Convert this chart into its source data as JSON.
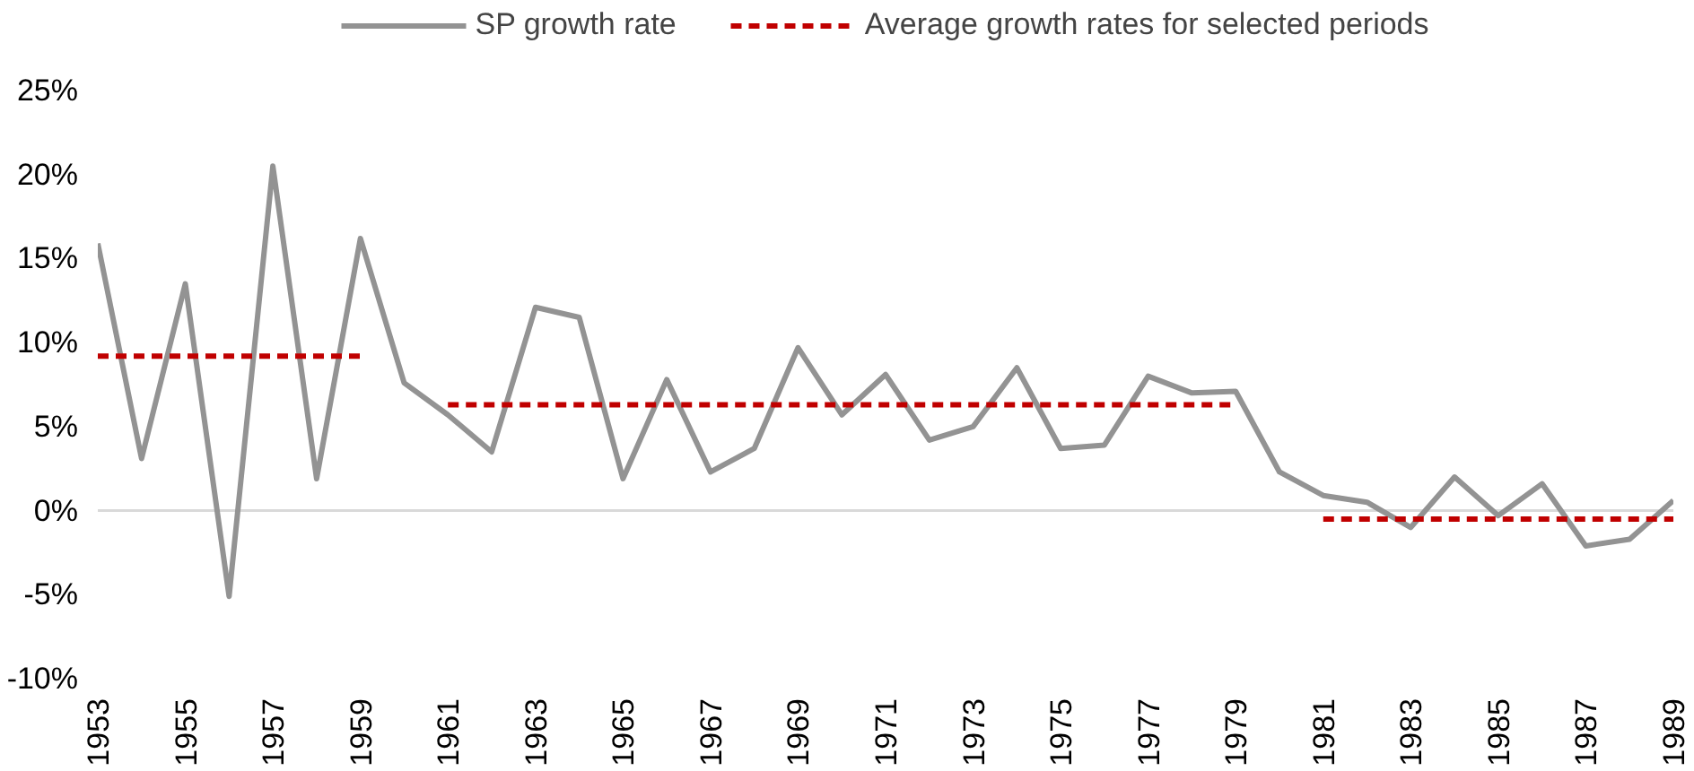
{
  "chart_data": {
    "type": "line",
    "x": [
      1953,
      1954,
      1955,
      1956,
      1957,
      1958,
      1959,
      1960,
      1961,
      1962,
      1963,
      1964,
      1965,
      1966,
      1967,
      1968,
      1969,
      1970,
      1971,
      1972,
      1973,
      1974,
      1975,
      1976,
      1977,
      1978,
      1979,
      1980,
      1981,
      1982,
      1983,
      1984,
      1985,
      1986,
      1987,
      1988,
      1989
    ],
    "series": [
      {
        "name": "SP growth rate",
        "color": "#939393",
        "line_style": "solid",
        "values": [
          15.9,
          3.1,
          13.5,
          -5.1,
          20.5,
          1.9,
          16.2,
          7.6,
          5.7,
          3.5,
          12.1,
          11.5,
          1.9,
          7.8,
          2.3,
          3.7,
          9.7,
          5.7,
          8.1,
          4.2,
          5.0,
          8.5,
          3.7,
          3.9,
          8.0,
          7.0,
          7.1,
          2.3,
          0.9,
          0.5,
          -1.0,
          2.0,
          -0.3,
          1.6,
          -2.1,
          -1.7,
          0.6
        ]
      },
      {
        "name": "Average growth rates for selected periods",
        "color": "#c00000",
        "line_style": "dashed",
        "x": [
          1953,
          1959,
          1960,
          1961,
          1979,
          1980,
          1981,
          1989
        ],
        "values": [
          9.2,
          9.2,
          null,
          6.3,
          6.3,
          null,
          -0.5,
          -0.5
        ]
      }
    ],
    "xlim": [
      1953,
      1989
    ],
    "xticks": [
      1953,
      1955,
      1957,
      1959,
      1961,
      1963,
      1965,
      1967,
      1969,
      1971,
      1973,
      1975,
      1977,
      1979,
      1981,
      1983,
      1985,
      1987,
      1989
    ],
    "ylim": [
      -10,
      25
    ],
    "yticks": [
      {
        "value": -10,
        "label": "-10%"
      },
      {
        "value": -5,
        "label": "-5%"
      },
      {
        "value": 0,
        "label": "0%"
      },
      {
        "value": 5,
        "label": "5%"
      },
      {
        "value": 10,
        "label": "10%"
      },
      {
        "value": 15,
        "label": "15%"
      },
      {
        "value": 20,
        "label": "20%"
      },
      {
        "value": 25,
        "label": "25%"
      }
    ],
    "ref_lines": [
      {
        "axis": "y",
        "value": 0,
        "color": "#d9d9d9"
      }
    ],
    "grid": false,
    "legend": "top",
    "marker": "none"
  }
}
